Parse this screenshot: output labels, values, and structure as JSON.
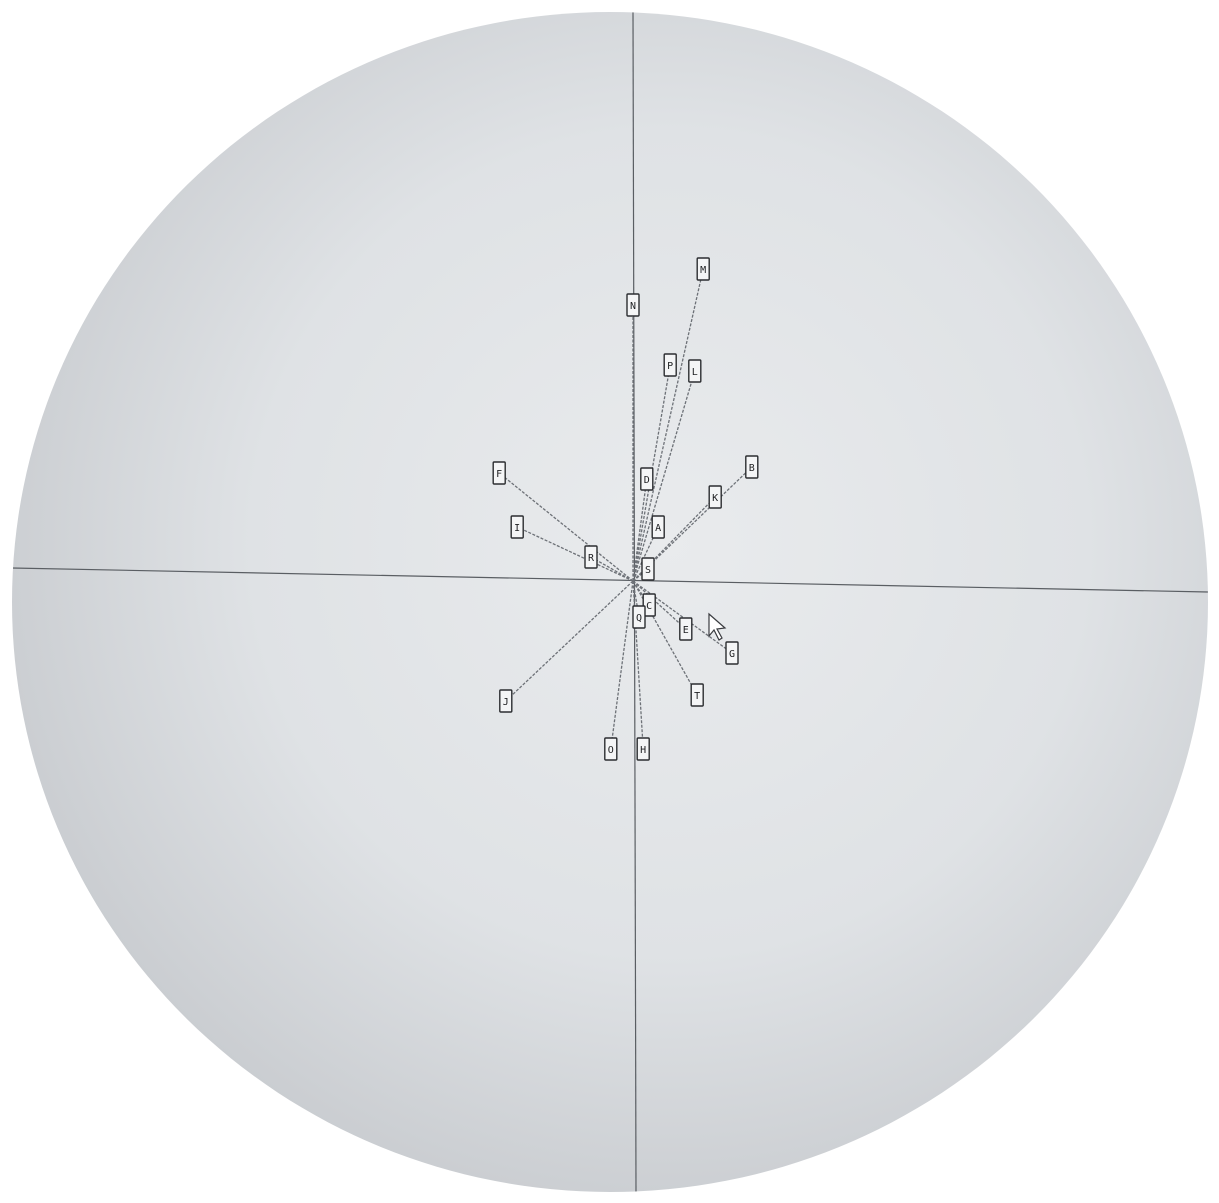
{
  "chart_data": {
    "type": "scatter",
    "style": "biplot vectors from origin with boxed letter labels",
    "title": "",
    "xlabel": "",
    "ylabel": "",
    "xlim": [
      -1,
      1
    ],
    "ylim": [
      -1,
      1
    ],
    "grid": false,
    "legend": "none",
    "points": [
      {
        "label": "M",
        "x": 0.117,
        "y": 0.52
      },
      {
        "label": "N",
        "x": 0.0,
        "y": 0.46
      },
      {
        "label": "P",
        "x": 0.062,
        "y": 0.36
      },
      {
        "label": "L",
        "x": 0.103,
        "y": 0.35
      },
      {
        "label": "F",
        "x": -0.223,
        "y": 0.18
      },
      {
        "label": "B",
        "x": 0.198,
        "y": 0.19
      },
      {
        "label": "D",
        "x": 0.023,
        "y": 0.17
      },
      {
        "label": "K",
        "x": 0.137,
        "y": 0.14
      },
      {
        "label": "I",
        "x": -0.193,
        "y": 0.09
      },
      {
        "label": "A",
        "x": 0.042,
        "y": 0.09
      },
      {
        "label": "R",
        "x": -0.07,
        "y": 0.04
      },
      {
        "label": "S",
        "x": 0.025,
        "y": 0.02
      },
      {
        "label": "C",
        "x": 0.027,
        "y": -0.04
      },
      {
        "label": "Q",
        "x": 0.01,
        "y": -0.06
      },
      {
        "label": "E",
        "x": 0.088,
        "y": -0.08
      },
      {
        "label": "G",
        "x": 0.165,
        "y": -0.12
      },
      {
        "label": "T",
        "x": 0.107,
        "y": -0.19
      },
      {
        "label": "J",
        "x": -0.212,
        "y": -0.2
      },
      {
        "label": "O",
        "x": -0.037,
        "y": -0.28
      },
      {
        "label": "H",
        "x": 0.017,
        "y": -0.28
      }
    ]
  },
  "colors": {
    "vignette": "#8e9196",
    "background": "#e3e6e9",
    "axis": "#5a5e63",
    "vector": "#6d7177",
    "label_box": "#f4f5f6",
    "label_border": "#2b2d30"
  },
  "icons": {
    "cursor": "mouse-pointer-icon"
  }
}
